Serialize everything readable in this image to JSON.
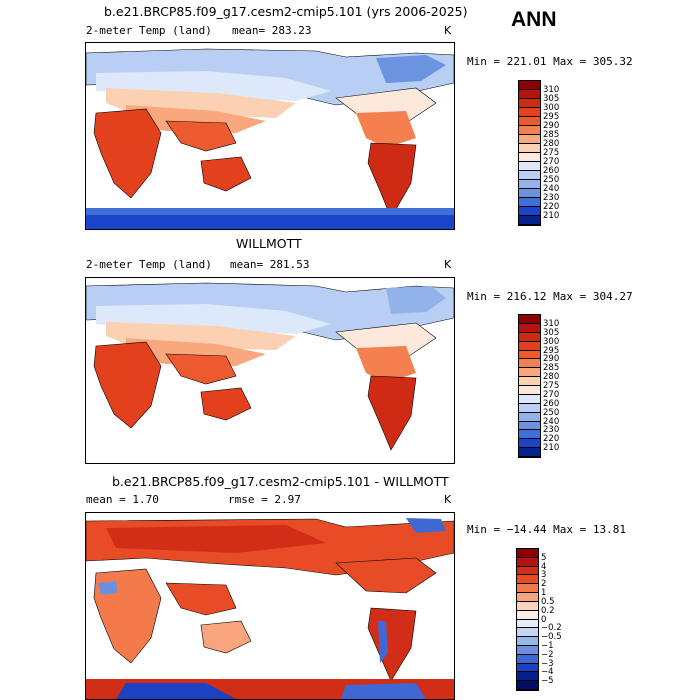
{
  "header": {
    "season": "ANN"
  },
  "panels": [
    {
      "id": "model",
      "title": "b.e21.BRCP85.f09_g17.cesm2-cmip5.101 (yrs 2006-2025)",
      "variable": "2-meter Temp (land)",
      "mean_text": "mean= 283.23",
      "units": "K",
      "minmax_text": "Min = 221.01 Max = 305.32",
      "colorbar_labels": [
        "310",
        "305",
        "300",
        "295",
        "290",
        "285",
        "280",
        "275",
        "270",
        "260",
        "250",
        "240",
        "230",
        "220",
        "210"
      ]
    },
    {
      "id": "obs",
      "title": "WILLMOTT",
      "variable": "2-meter Temp (land)",
      "mean_text": "mean= 281.53",
      "units": "K",
      "minmax_text": "Min = 216.12 Max = 304.27",
      "colorbar_labels": [
        "310",
        "305",
        "300",
        "295",
        "290",
        "285",
        "280",
        "275",
        "270",
        "260",
        "250",
        "240",
        "230",
        "220",
        "210"
      ]
    },
    {
      "id": "diff",
      "title": "b.e21.BRCP85.f09_g17.cesm2-cmip5.101 - WILLMOTT",
      "mean_text": "mean =    1.70",
      "rmse_text": "rmse =    2.97",
      "units": "K",
      "minmax_text": "Min = −14.44 Max =   13.81",
      "colorbar_labels": [
        "5",
        "4",
        "3",
        "2",
        "1",
        "0.5",
        "0.2",
        "0",
        "−0.2",
        "−0.5",
        "−1",
        "−2",
        "−3",
        "−4",
        "−5"
      ]
    }
  ],
  "colors": {
    "temp_scale": [
      "#8b0000",
      "#b3150e",
      "#cf2a14",
      "#e3401d",
      "#ee5a30",
      "#f5804f",
      "#f9a77c",
      "#fcd0b3",
      "#fde9dc",
      "#dde9fa",
      "#b8cff3",
      "#91b3ea",
      "#6a93e0",
      "#3f6fd8",
      "#1a45c8",
      "#06228f"
    ],
    "diff_scale": [
      "#8b0000",
      "#b3150e",
      "#d22d17",
      "#e84c26",
      "#f47a4c",
      "#f9a57d",
      "#fcd3b8",
      "#fdeee4",
      "#e4eefb",
      "#c3d7f4",
      "#98b6ea",
      "#6b90de",
      "#3f68d2",
      "#1a42c2",
      "#06208f",
      "#040e60"
    ]
  }
}
